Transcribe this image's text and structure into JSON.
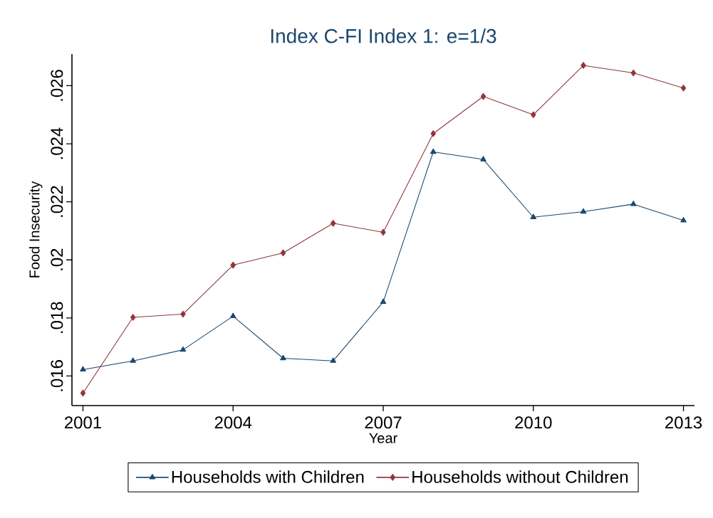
{
  "chart_data": {
    "type": "line",
    "title": "Index C-FI Index 1: e=1/3",
    "xlabel": "Year",
    "ylabel": "Food Insecurity",
    "x": [
      2001,
      2002,
      2003,
      2004,
      2005,
      2006,
      2007,
      2008,
      2009,
      2010,
      2011,
      2012,
      2013
    ],
    "series": [
      {
        "name": "Households with Children",
        "color": "#1a476f",
        "marker": "triangle",
        "values": [
          0.01622,
          0.01652,
          0.0169,
          0.01806,
          0.01661,
          0.01652,
          0.01855,
          0.02372,
          0.02346,
          0.02147,
          0.02166,
          0.02192,
          0.02136
        ]
      },
      {
        "name": "Households without Children",
        "color": "#90353b",
        "marker": "diamond",
        "values": [
          0.01541,
          0.01802,
          0.01813,
          0.01982,
          0.02024,
          0.02126,
          0.02095,
          0.02435,
          0.02563,
          0.025,
          0.0267,
          0.02644,
          0.02592
        ]
      }
    ],
    "xlim": [
      2000.78,
      2013.22
    ],
    "ylim": [
      0.01498,
      0.02709
    ],
    "xticks": [
      2001,
      2004,
      2007,
      2010,
      2013
    ],
    "yticks": [
      {
        "value": 0.016,
        "label": ".016"
      },
      {
        "value": 0.018,
        "label": ".018"
      },
      {
        "value": 0.02,
        "label": ".02"
      },
      {
        "value": 0.022,
        "label": ".022"
      },
      {
        "value": 0.024,
        "label": ".024"
      },
      {
        "value": 0.026,
        "label": ".026"
      }
    ],
    "grid": false,
    "legend": "bottom",
    "line_style": "solid"
  }
}
